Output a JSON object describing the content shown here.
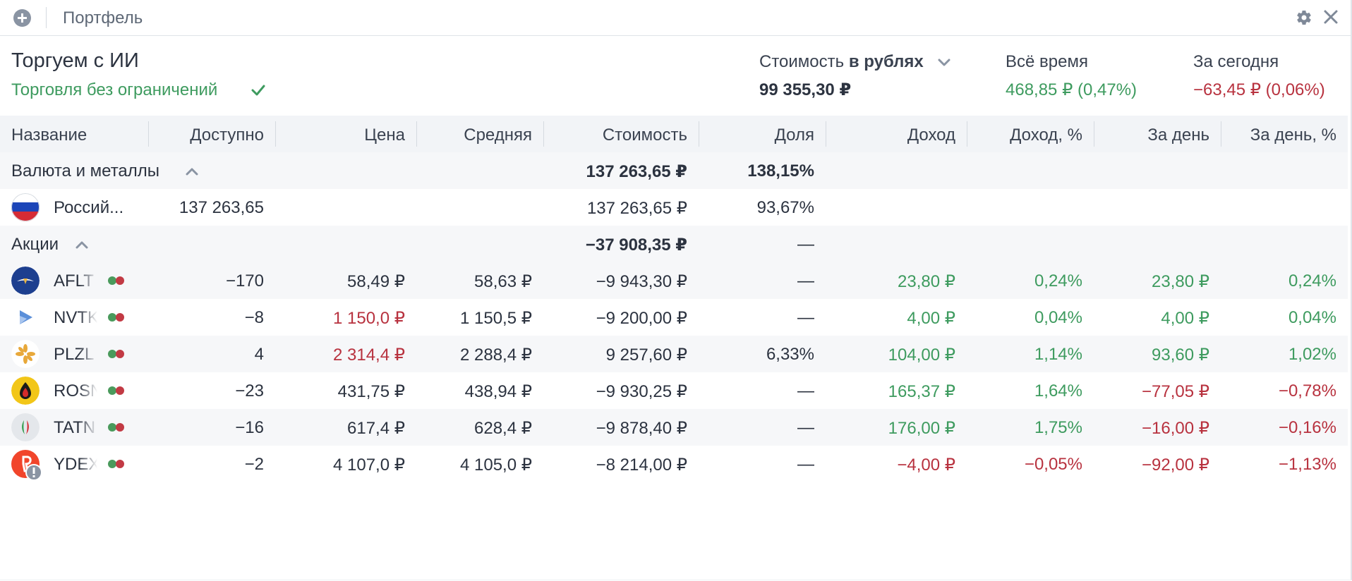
{
  "topbar": {
    "tab_title": "Портфель"
  },
  "header": {
    "account_name": "Торгуем с ИИ",
    "status": "Торговля без ограничений",
    "cost_label_prefix": "Стоимость ",
    "cost_label_currency": "в рублях",
    "cost_value": "99 355,30 ₽",
    "alltime_label": "Всё время",
    "alltime_value": "468,85 ₽ (0,47%)",
    "today_label": "За сегодня",
    "today_value": "−63,45 ₽ (0,06%)"
  },
  "colors": {
    "positive": "#3e9b5f",
    "negative": "#b8323f",
    "header_bg": "#f2f4f7"
  },
  "table": {
    "columns": [
      "Название",
      "Доступно",
      "Цена",
      "Средняя",
      "Стоимость",
      "Доля",
      "Доход",
      "Доход, %",
      "За день",
      "За день, %"
    ],
    "groups": {
      "currency": {
        "label": "Валюта и металлы",
        "value": "137 263,65 ₽",
        "share": "138,15%"
      },
      "stocks": {
        "label": "Акции",
        "value": "−37 908,35 ₽",
        "share": "—"
      }
    },
    "currency_row": {
      "name": "Россий...",
      "available": "137 263,65",
      "value": "137 263,65 ₽",
      "share": "93,67%",
      "icon": "russia-flag-icon"
    },
    "rows": [
      {
        "ticker": "AFLT",
        "icon": "aeroflot-logo-icon",
        "available": "−170",
        "price": "58,49 ₽",
        "price_color": "neutral",
        "avg": "58,63 ₽",
        "value": "−9 943,30 ₽",
        "share": "—",
        "income": "23,80 ₽",
        "income_pct": "0,24%",
        "day": "23,80 ₽",
        "day_pct": "0,24%",
        "income_sign": "pos",
        "day_sign": "pos"
      },
      {
        "ticker": "NVTK",
        "icon": "novatek-logo-icon",
        "available": "−8",
        "price": "1 150,0 ₽",
        "price_color": "red",
        "avg": "1 150,5 ₽",
        "value": "−9 200,00 ₽",
        "share": "—",
        "income": "4,00 ₽",
        "income_pct": "0,04%",
        "day": "4,00 ₽",
        "day_pct": "0,04%",
        "income_sign": "pos",
        "day_sign": "pos"
      },
      {
        "ticker": "PLZL",
        "icon": "polyus-logo-icon",
        "available": "4",
        "price": "2 314,4 ₽",
        "price_color": "red",
        "avg": "2 288,4 ₽",
        "value": "9 257,60 ₽",
        "share": "6,33%",
        "income": "104,00 ₽",
        "income_pct": "1,14%",
        "day": "93,60 ₽",
        "day_pct": "1,02%",
        "income_sign": "pos",
        "day_sign": "pos"
      },
      {
        "ticker": "ROSN",
        "icon": "rosneft-logo-icon",
        "available": "−23",
        "price": "431,75 ₽",
        "price_color": "neutral",
        "avg": "438,94 ₽",
        "value": "−9 930,25 ₽",
        "share": "—",
        "income": "165,37 ₽",
        "income_pct": "1,64%",
        "day": "−77,05 ₽",
        "day_pct": "−0,78%",
        "income_sign": "pos",
        "day_sign": "neg"
      },
      {
        "ticker": "TATN",
        "icon": "tatneft-logo-icon",
        "available": "−16",
        "price": "617,4 ₽",
        "price_color": "neutral",
        "avg": "628,4 ₽",
        "value": "−9 878,40 ₽",
        "share": "—",
        "income": "176,00 ₽",
        "income_pct": "1,75%",
        "day": "−16,00 ₽",
        "day_pct": "−0,16%",
        "income_sign": "pos",
        "day_sign": "neg"
      },
      {
        "ticker": "YDEX",
        "icon": "yandex-logo-icon",
        "available": "−2",
        "price": "4 107,0 ₽",
        "price_color": "neutral",
        "avg": "4 105,0 ₽",
        "value": "−8 214,00 ₽",
        "share": "—",
        "income": "−4,00 ₽",
        "income_pct": "−0,05%",
        "day": "−92,00 ₽",
        "day_pct": "−1,13%",
        "income_sign": "neg",
        "day_sign": "neg"
      }
    ]
  }
}
